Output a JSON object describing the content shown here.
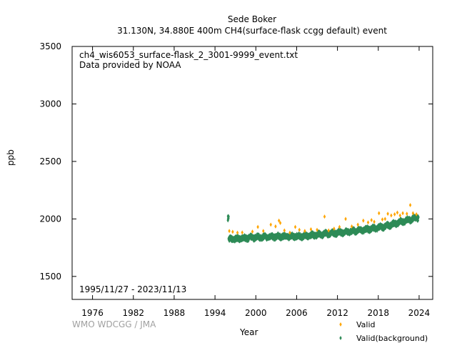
{
  "colors": {
    "valid": "#ffa500",
    "background": "#2e8b57",
    "axis": "#000000",
    "credit": "#a0a0a0"
  },
  "chart_data": {
    "type": "scatter",
    "title": "Sede Boker",
    "subtitle": "31.130N, 34.880E 400m    CH4(surface-flask ccgg default) event",
    "file_label": "ch4_wis6053_surface-flask_2_3001-9999_event.txt",
    "provider": "Data provided by NOAA",
    "date_range": "1995/11/27 - 2023/11/13",
    "xlabel": "Year",
    "ylabel": "ppb",
    "credit": "WMO WDCGG / JMA",
    "xlim": [
      1973,
      2026
    ],
    "ylim": [
      1300,
      3500
    ],
    "xticks": [
      "1976",
      "1982",
      "1988",
      "1994",
      "2000",
      "2006",
      "2012",
      "2018",
      "2024"
    ],
    "xtick_values": [
      1976,
      1982,
      1988,
      1994,
      2000,
      2006,
      2012,
      2018,
      2024
    ],
    "yticks": [
      "1500",
      "2000",
      "2500",
      "3000",
      "3500"
    ],
    "ytick_values": [
      1500,
      2000,
      2500,
      3000,
      3500
    ],
    "legend_position": "bottom-right",
    "series": [
      {
        "name": "Valid(background)",
        "color": "#2e8b57",
        "trend": [
          [
            1996,
            1822
          ],
          [
            2000,
            1840
          ],
          [
            2004,
            1848
          ],
          [
            2007,
            1850
          ],
          [
            2010,
            1868
          ],
          [
            2013,
            1885
          ],
          [
            2016,
            1905
          ],
          [
            2019,
            1935
          ],
          [
            2022,
            1985
          ],
          [
            2023.9,
            2012
          ]
        ],
        "spread": 25,
        "x_start": 1995.9,
        "x_end": 2023.9
      },
      {
        "name": "Valid",
        "color": "#ffa500",
        "points": [
          [
            1996.1,
            1895
          ],
          [
            1996.6,
            1888
          ],
          [
            1997.3,
            1880
          ],
          [
            1998.0,
            1882
          ],
          [
            1999.5,
            1890
          ],
          [
            2000.3,
            1930
          ],
          [
            2001.1,
            1895
          ],
          [
            2002.2,
            1950
          ],
          [
            2002.9,
            1935
          ],
          [
            2003.4,
            1985
          ],
          [
            2003.6,
            1965
          ],
          [
            2004.2,
            1900
          ],
          [
            2005.0,
            1880
          ],
          [
            2005.8,
            1930
          ],
          [
            2006.4,
            1905
          ],
          [
            2007.2,
            1895
          ],
          [
            2008.1,
            1910
          ],
          [
            2009.0,
            1905
          ],
          [
            2010.1,
            2020
          ],
          [
            2010.7,
            1900
          ],
          [
            2011.5,
            1915
          ],
          [
            2012.3,
            1930
          ],
          [
            2013.2,
            2000
          ],
          [
            2014.1,
            1935
          ],
          [
            2015.0,
            1950
          ],
          [
            2015.8,
            1985
          ],
          [
            2016.5,
            1970
          ],
          [
            2017.0,
            1990
          ],
          [
            2017.4,
            1975
          ],
          [
            2018.1,
            2050
          ],
          [
            2018.6,
            1995
          ],
          [
            2019.0,
            2000
          ],
          [
            2019.4,
            2045
          ],
          [
            2019.9,
            2030
          ],
          [
            2020.4,
            2040
          ],
          [
            2020.8,
            2055
          ],
          [
            2021.2,
            2030
          ],
          [
            2021.6,
            2050
          ],
          [
            2022.2,
            2045
          ],
          [
            2022.7,
            2120
          ],
          [
            2023.1,
            2050
          ],
          [
            2023.6,
            2040
          ]
        ]
      }
    ]
  }
}
